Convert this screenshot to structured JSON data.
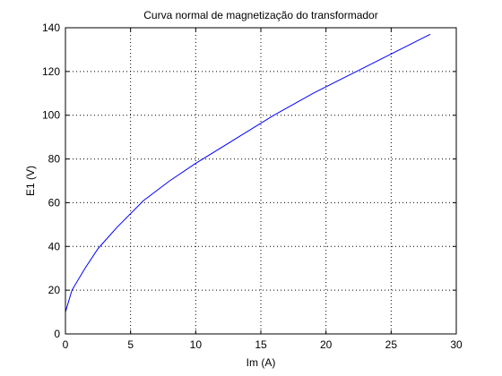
{
  "chart_data": {
    "type": "line",
    "title": "Curva normal de magnetização do transformador",
    "xlabel": "Im (A)",
    "ylabel": "E1 (V)",
    "xlim": [
      0,
      30
    ],
    "ylim": [
      0,
      140
    ],
    "x_ticks": [
      0,
      5,
      10,
      15,
      20,
      25,
      30
    ],
    "y_ticks": [
      0,
      20,
      40,
      60,
      80,
      100,
      120,
      140
    ],
    "x_tick_labels": [
      "0",
      "5",
      "10",
      "15",
      "20",
      "25",
      "30"
    ],
    "y_tick_labels": [
      "0",
      "20",
      "40",
      "60",
      "80",
      "100",
      "120",
      "140"
    ],
    "grid": true,
    "grid_style": "dotted",
    "series": [
      {
        "color": "#0000ff",
        "x": [
          0,
          0.5,
          1.5,
          2.5,
          4,
          6,
          8,
          10,
          13,
          16,
          19,
          22,
          25,
          28
        ],
        "y": [
          10,
          20,
          30,
          39,
          49,
          61,
          70,
          78,
          89,
          100,
          110,
          119,
          128,
          137
        ]
      }
    ]
  }
}
